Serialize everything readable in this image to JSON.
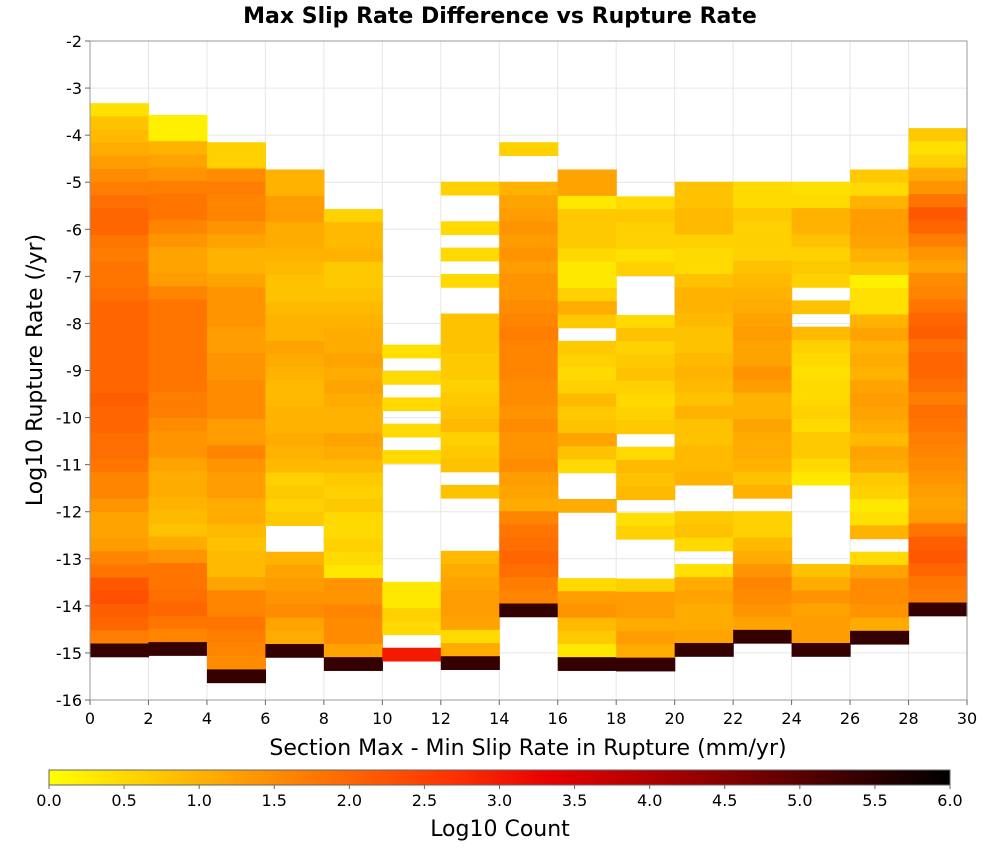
{
  "chart_data": {
    "type": "heatmap",
    "title": "Max Slip Rate Difference vs Rupture Rate",
    "xlabel": "Section Max - Min Slip Rate in Rupture (mm/yr)",
    "ylabel": "Log10 Rupture Rate (/yr)",
    "xlim": [
      0,
      30
    ],
    "ylim": [
      -16,
      -2
    ],
    "x_ticks": [
      0,
      2,
      4,
      6,
      8,
      10,
      12,
      14,
      16,
      18,
      20,
      22,
      24,
      26,
      28,
      30
    ],
    "y_ticks": [
      -2,
      -3,
      -4,
      -5,
      -6,
      -7,
      -8,
      -9,
      -10,
      -11,
      -12,
      -13,
      -14,
      -15,
      -16
    ],
    "bin_width_x": 2,
    "bin_height_y": 0.28,
    "grid": true,
    "colorbar": {
      "label": "Log10 Count",
      "range": [
        0,
        6
      ],
      "ticks": [
        "0.0",
        "0.5",
        "1.0",
        "1.5",
        "2.0",
        "2.5",
        "3.0",
        "3.5",
        "4.0",
        "4.5",
        "5.0",
        "5.5",
        "6.0"
      ],
      "colors": [
        "#ffff00",
        "#ffcc00",
        "#ff9900",
        "#ff6600",
        "#ff3300",
        "#e80000",
        "#b00000",
        "#780000",
        "#3a0000",
        "#000000"
      ]
    },
    "columns": [
      {
        "x0": 0,
        "y_top": -3.32,
        "values": [
          0.4,
          0.8,
          0.9,
          1.1,
          1.3,
          1.5,
          1.7,
          1.9,
          2.0,
          2.0,
          1.8,
          1.7,
          1.8,
          1.8,
          1.9,
          2.0,
          2.0,
          2.0,
          2.0,
          2.0,
          2.0,
          2.0,
          2.1,
          2.0,
          2.0,
          1.9,
          1.9,
          1.8,
          1.6,
          1.6,
          1.4,
          1.2,
          1.2,
          1.3,
          1.6,
          1.8,
          2.2,
          2.3,
          2.1,
          2.0,
          1.7,
          5.4
        ]
      },
      {
        "x0": 2,
        "y_top": -3.57,
        "values": [
          0.2,
          0.2,
          1.0,
          1.2,
          1.4,
          1.7,
          1.8,
          1.8,
          1.6,
          1.4,
          1.2,
          1.2,
          1.3,
          1.6,
          1.8,
          1.8,
          1.8,
          1.8,
          1.8,
          1.8,
          1.8,
          1.7,
          1.7,
          1.5,
          1.4,
          1.4,
          1.2,
          1.1,
          1.1,
          1.0,
          0.9,
          0.8,
          1.1,
          1.4,
          1.8,
          1.8,
          1.9,
          2.0,
          1.8,
          1.6,
          5.4
        ]
      },
      {
        "x0": 4,
        "y_top": -4.15,
        "values": [
          0.6,
          0.6,
          1.5,
          1.7,
          1.6,
          1.6,
          1.4,
          1.2,
          1.0,
          1.0,
          1.2,
          1.4,
          1.4,
          1.4,
          1.3,
          1.3,
          1.4,
          1.4,
          1.5,
          1.5,
          1.5,
          1.3,
          1.3,
          1.6,
          1.4,
          1.3,
          1.3,
          1.1,
          1.1,
          0.9,
          0.8,
          0.9,
          0.9,
          1.2,
          1.6,
          1.6,
          1.8,
          1.7,
          1.6,
          1.5,
          5.4
        ]
      },
      {
        "x0": 6,
        "y_top": -4.73,
        "values": [
          1.0,
          1.0,
          1.3,
          1.3,
          1.1,
          1.1,
          1.0,
          0.9,
          0.8,
          0.8,
          0.9,
          1.0,
          1.0,
          1.2,
          1.1,
          1.0,
          0.9,
          0.9,
          1.0,
          1.0,
          1.1,
          1.0,
          0.9,
          0.6,
          0.7,
          0.6,
          0.7,
          null,
          null,
          1.0,
          1.2,
          1.3,
          1.4,
          1.5,
          1.2,
          1.1,
          5.4
        ]
      },
      {
        "x0": 8,
        "y_top": -5.57,
        "values": [
          0.6,
          0.9,
          0.9,
          1.0,
          0.7,
          0.7,
          0.8,
          0.9,
          1.0,
          1.1,
          1.1,
          1.2,
          1.1,
          1.2,
          1.1,
          1.0,
          1.0,
          1.2,
          1.1,
          0.9,
          0.7,
          0.6,
          0.7,
          0.5,
          0.5,
          0.6,
          0.5,
          0.3,
          1.4,
          1.4,
          1.6,
          1.5,
          1.5,
          1.2,
          5.4
        ]
      },
      {
        "x0": 10,
        "y_top": -8.45,
        "values": [
          0.4,
          null,
          0.5,
          null,
          0.5,
          null,
          0.5,
          null,
          0.5,
          null,
          null,
          null,
          null,
          null,
          null,
          null,
          null,
          null,
          0.3,
          0.3,
          0.6,
          0.5,
          null,
          3.0
        ]
      },
      {
        "x0": 12,
        "y_top": -4.99,
        "values": [
          0.6,
          null,
          null,
          0.5,
          null,
          0.5,
          null,
          0.5,
          null,
          null,
          0.8,
          0.8,
          0.8,
          0.7,
          0.7,
          0.6,
          0.7,
          0.8,
          0.9,
          0.6,
          0.7,
          0.8,
          null,
          0.8,
          null,
          null,
          null,
          null,
          0.9,
          1.1,
          1.2,
          1.3,
          1.3,
          1.2,
          0.5,
          1.1,
          5.4
        ]
      },
      {
        "x0": 14,
        "y_top": -4.15,
        "values": [
          0.6,
          null,
          null,
          1.0,
          1.2,
          1.3,
          1.4,
          1.3,
          1.4,
          1.3,
          1.4,
          1.4,
          1.5,
          1.6,
          1.7,
          1.6,
          1.6,
          1.6,
          1.5,
          1.5,
          1.4,
          1.5,
          1.4,
          1.4,
          1.5,
          1.3,
          1.2,
          1.1,
          1.6,
          1.8,
          1.9,
          2.0,
          1.9,
          1.7,
          1.6,
          5.4
        ]
      },
      {
        "x0": 16,
        "y_top": -4.73,
        "values": [
          1.2,
          1.2,
          0.3,
          0.7,
          0.7,
          0.7,
          0.5,
          0.3,
          0.3,
          0.6,
          1.1,
          0.7,
          null,
          0.7,
          0.6,
          0.5,
          0.6,
          0.9,
          0.7,
          0.8,
          1.2,
          0.8,
          0.5,
          null,
          null,
          1.1,
          null,
          null,
          null,
          null,
          null,
          0.5,
          1.3,
          1.4,
          0.9,
          0.7,
          0.3,
          5.4
        ]
      },
      {
        "x0": 18,
        "y_top": -5.3,
        "values": [
          0.5,
          0.7,
          0.6,
          0.6,
          0.4,
          0.6,
          null,
          null,
          null,
          0.5,
          0.8,
          0.6,
          0.7,
          0.8,
          0.6,
          0.5,
          0.6,
          0.7,
          null,
          0.5,
          0.9,
          0.8,
          0.9,
          null,
          0.4,
          0.6,
          null,
          null,
          null,
          0.6,
          1.3,
          1.3,
          1.1,
          1.3,
          1.1,
          5.4
        ]
      },
      {
        "x0": 20,
        "y_top": -4.99,
        "values": [
          0.8,
          0.8,
          0.9,
          0.9,
          0.6,
          0.5,
          0.5,
          0.8,
          1.0,
          1.0,
          0.9,
          0.8,
          0.8,
          0.9,
          1.0,
          0.9,
          0.8,
          1.0,
          0.8,
          0.8,
          0.9,
          0.9,
          1.0,
          null,
          null,
          0.7,
          0.8,
          0.5,
          null,
          0.4,
          1.1,
          1.2,
          1.1,
          1.1,
          1.2,
          5.4
        ]
      },
      {
        "x0": 22,
        "y_top": -4.99,
        "values": [
          0.5,
          0.5,
          0.7,
          0.6,
          0.6,
          0.6,
          0.8,
          0.9,
          1.0,
          1.1,
          1.2,
          1.3,
          1.2,
          1.2,
          1.4,
          1.3,
          1.0,
          1.0,
          1.2,
          1.1,
          1.1,
          1.0,
          0.8,
          1.0,
          null,
          0.6,
          0.6,
          0.9,
          1.1,
          1.4,
          1.6,
          1.5,
          1.4,
          1.2,
          5.4
        ]
      },
      {
        "x0": 24,
        "y_top": -4.99,
        "values": [
          0.4,
          0.5,
          1.0,
          1.0,
          0.8,
          0.6,
          0.7,
          0.6,
          null,
          0.8,
          null,
          0.9,
          0.6,
          0.5,
          0.4,
          0.5,
          0.5,
          0.6,
          0.5,
          0.7,
          0.7,
          0.5,
          0.3,
          null,
          null,
          null,
          null,
          null,
          null,
          0.8,
          1.1,
          1.4,
          1.2,
          1.3,
          1.3,
          5.4
        ]
      },
      {
        "x0": 26,
        "y_top": -4.73,
        "values": [
          0.7,
          0.5,
          1.0,
          1.3,
          1.3,
          1.2,
          1.0,
          0.8,
          0.2,
          0.4,
          0.4,
          1.0,
          1.2,
          1.0,
          1.1,
          1.0,
          1.2,
          1.3,
          1.2,
          1.1,
          0.9,
          1.2,
          1.1,
          0.7,
          0.6,
          0.3,
          0.4,
          1.0,
          null,
          0.5,
          1.2,
          1.5,
          1.5,
          1.4,
          1.1,
          5.4
        ]
      },
      {
        "x0": 28,
        "y_top": -3.85,
        "values": [
          0.7,
          0.4,
          0.6,
          1.1,
          1.4,
          1.8,
          2.2,
          2.0,
          1.7,
          1.4,
          1.2,
          1.5,
          1.6,
          1.8,
          2.0,
          2.1,
          1.9,
          2.0,
          2.0,
          1.9,
          1.7,
          1.9,
          1.8,
          1.7,
          1.6,
          1.5,
          1.4,
          1.3,
          1.2,
          1.3,
          1.8,
          2.1,
          2.2,
          2.0,
          1.8,
          1.7,
          5.4
        ]
      }
    ]
  }
}
